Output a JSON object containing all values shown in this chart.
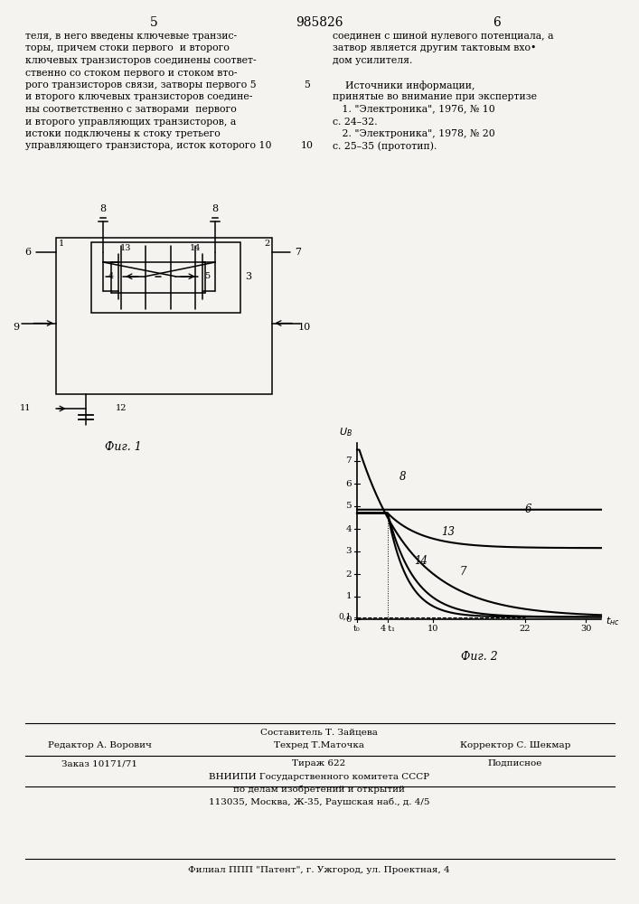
{
  "page_color": "#f5f3ef",
  "title_number": "985826",
  "col_left_num": "5",
  "col_right_num": "6",
  "text_left_lines": [
    "теля, в него введены ключевые транзис-",
    "торы, причем стоки первого  и второго",
    "ключевых транзисторов соединены соответ-",
    "ственно со стоком первого и стоком вто-",
    "рого транзисторов связи, затворы первого 5",
    "и второго ключевых транзисторов соедине-",
    "ны соответственно с затворами  первого",
    "и второго управляющих транзисторов, а",
    "истоки подключены к стоку третьего",
    "управляющего транзистора, исток которого 10"
  ],
  "text_right_lines": [
    "соединен с шиной нулевого потенциала, а",
    "затвор является другим тактовым вхо•",
    "дом усилителя.",
    "",
    "    Источники информации,",
    "принятые во внимание при экспертизе",
    "   1. \"Электроника\", 1976, № 10",
    "с. 24–32.",
    "   2. \"Электроника\", 1978, № 20",
    "с. 25–35 (прототип)."
  ],
  "fig1_label": "Фиг. 1",
  "fig2_label": "Фиг. 2",
  "bottom_composer": "Составитель Т. Зайцева",
  "bottom_editor": "Редактор А. Ворович",
  "bottom_tech": "Техред Т.Маточка",
  "bottom_corrector": "Корректор С. Шекмар",
  "bottom_order": "Заказ 10171/71",
  "bottom_tirazh": "Тираж 622",
  "bottom_podp": "Подписное",
  "bottom_vniip": "ВНИИПИ Государственного комитета СССР",
  "bottom_dela": "по делам изобретений и открытий",
  "bottom_addr": "113035, Москва, Ж-35, Раушская наб., д. 4/5",
  "bottom_filial": "Филиал ППП \"Патент\", г. Ужгород, ул. Проектная, 4"
}
